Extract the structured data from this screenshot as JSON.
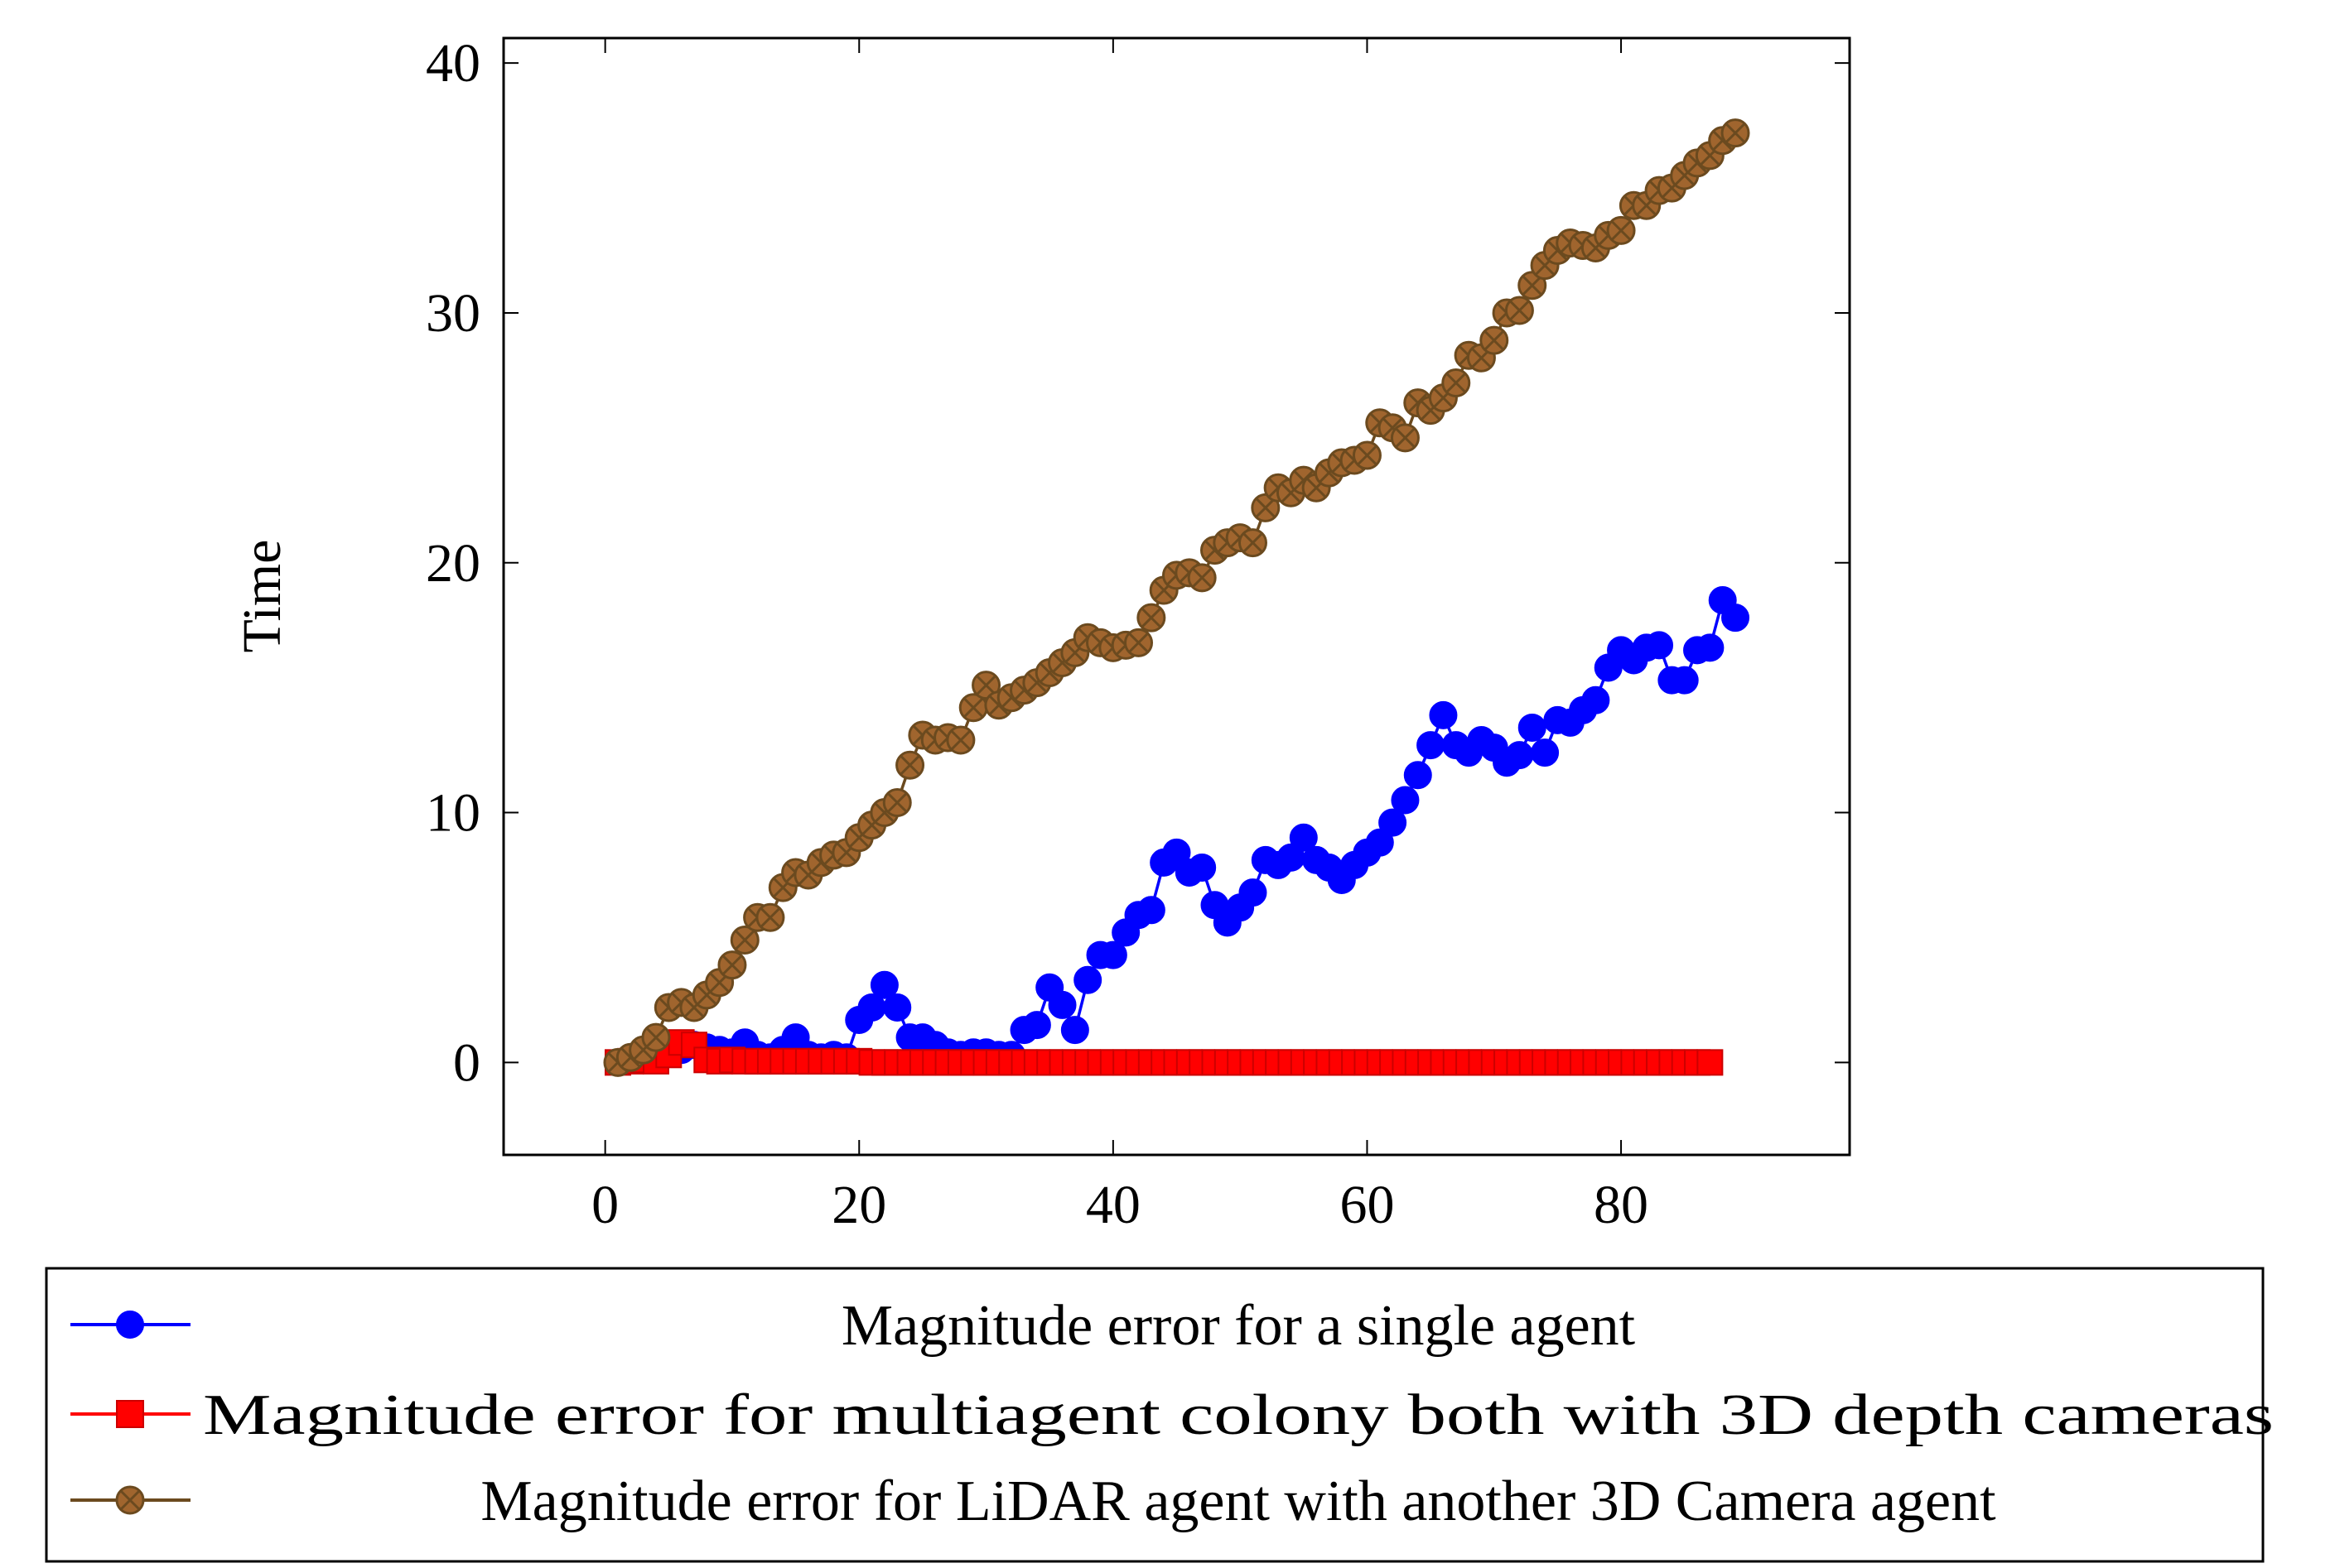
{
  "chart_data": {
    "type": "line",
    "title": "",
    "xlabel": "",
    "ylabel": "Time",
    "xlim": [
      -8,
      98
    ],
    "ylim": [
      -3.7,
      41
    ],
    "xticks": [
      0,
      20,
      40,
      60,
      80
    ],
    "yticks": [
      0,
      10,
      20,
      30,
      40
    ],
    "grid": false,
    "legend_position": "bottom",
    "series": [
      {
        "name": "Magnitude error for a single agent",
        "color": "#0000ff",
        "marker": "circle",
        "x": [
          1,
          2,
          3,
          4,
          5,
          6,
          7,
          8,
          9,
          10,
          11,
          12,
          13,
          14,
          15,
          16,
          17,
          18,
          19,
          20,
          21,
          22,
          23,
          24,
          25,
          26,
          27,
          28,
          29,
          30,
          31,
          32,
          33,
          34,
          35,
          36,
          37,
          38,
          39,
          40,
          41,
          42,
          43,
          44,
          45,
          46,
          47,
          48,
          49,
          50,
          51,
          52,
          53,
          54,
          55,
          56,
          57,
          58,
          59,
          60,
          61,
          62,
          63,
          64,
          65,
          66,
          67,
          68,
          69,
          70,
          71,
          72,
          73,
          74,
          75,
          76,
          77,
          78,
          79,
          80,
          81,
          82,
          83,
          84,
          85,
          86,
          87,
          88,
          89
        ],
        "y": [
          0,
          0.1,
          0.2,
          0.3,
          0.4,
          0.5,
          0.7,
          0.6,
          0.5,
          0.4,
          0.8,
          0.3,
          0.2,
          0.5,
          1.0,
          0.3,
          0.2,
          0.3,
          0.2,
          1.7,
          2.2,
          3.1,
          2.2,
          1.0,
          1.0,
          0.7,
          0.4,
          0.3,
          0.4,
          0.4,
          0.3,
          0.3,
          1.3,
          1.5,
          3.0,
          2.3,
          1.3,
          3.3,
          4.3,
          4.3,
          5.2,
          5.9,
          6.1,
          8.0,
          8.4,
          7.6,
          7.8,
          6.3,
          5.6,
          6.2,
          6.8,
          8.1,
          7.9,
          8.2,
          9.0,
          8.1,
          7.8,
          7.3,
          7.9,
          8.4,
          8.8,
          9.6,
          10.5,
          11.5,
          12.7,
          13.9,
          12.7,
          12.4,
          12.9,
          12.6,
          12.0,
          12.3,
          13.4,
          12.4,
          13.7,
          13.6,
          14.1,
          14.5,
          15.8,
          16.5,
          16.1,
          16.6,
          16.7,
          15.3,
          15.3,
          16.5,
          16.6,
          18.5,
          17.8
        ]
      },
      {
        "name": "Magnitude error for multiagent colony both with 3D depth cameras",
        "color": "#ff0000",
        "marker": "square",
        "x": [
          1,
          2,
          3,
          4,
          5,
          6,
          7,
          8,
          9,
          10,
          11,
          12,
          13,
          14,
          15,
          16,
          17,
          18,
          19,
          20,
          21,
          22,
          23,
          24,
          25,
          26,
          27,
          28,
          29,
          30,
          31,
          32,
          33,
          34,
          35,
          36,
          37,
          38,
          39,
          40,
          41,
          42,
          43,
          44,
          45,
          46,
          47,
          48,
          49,
          50,
          51,
          52,
          53,
          54,
          55,
          56,
          57,
          58,
          59,
          60,
          61,
          62,
          63,
          64,
          65,
          66,
          67,
          68,
          69,
          70,
          71,
          72,
          73,
          74,
          75,
          76,
          77,
          78,
          79,
          80,
          81,
          82,
          83,
          84,
          85,
          86,
          87
        ],
        "y": [
          0,
          0.05,
          0.1,
          0.05,
          0.3,
          0.8,
          0.7,
          0.1,
          0.05,
          0.1,
          0.05,
          0.05,
          0.05,
          0.05,
          0.05,
          0.05,
          0.05,
          0.05,
          0.05,
          0.05,
          0,
          0,
          0,
          0,
          0,
          0,
          0,
          0,
          0,
          0,
          0,
          0,
          0,
          0,
          0,
          0,
          0,
          0,
          0,
          0,
          0,
          0,
          0,
          0,
          0,
          0,
          0,
          0,
          0,
          0,
          0,
          0,
          0,
          0,
          0,
          0,
          0,
          0,
          0,
          0,
          0,
          0,
          0,
          0,
          0,
          0,
          0,
          0,
          0,
          0,
          0,
          0,
          0,
          0,
          0,
          0,
          0,
          0,
          0,
          0,
          0,
          0,
          0,
          0,
          0,
          0,
          0
        ]
      },
      {
        "name": "Magnitude error for LiDAR agent with another 3D Camera agent",
        "color": "#8b5a2b",
        "marker": "circle-x",
        "x": [
          1,
          2,
          3,
          4,
          5,
          6,
          7,
          8,
          9,
          10,
          11,
          12,
          13,
          14,
          15,
          16,
          17,
          18,
          19,
          20,
          21,
          22,
          23,
          24,
          25,
          26,
          27,
          28,
          29,
          30,
          31,
          32,
          33,
          34,
          35,
          36,
          37,
          38,
          39,
          40,
          41,
          42,
          43,
          44,
          45,
          46,
          47,
          48,
          49,
          50,
          51,
          52,
          53,
          54,
          55,
          56,
          57,
          58,
          59,
          60,
          61,
          62,
          63,
          64,
          65,
          66,
          67,
          68,
          69,
          70,
          71,
          72,
          73,
          74,
          75,
          76,
          77,
          78,
          79,
          80,
          81,
          82,
          83,
          84,
          85,
          86,
          87,
          88,
          89
        ],
        "y": [
          0,
          0.2,
          0.5,
          1.0,
          2.2,
          2.4,
          2.2,
          2.7,
          3.2,
          3.9,
          4.9,
          5.8,
          5.8,
          7.0,
          7.6,
          7.5,
          8.0,
          8.3,
          8.4,
          9.0,
          9.5,
          10.0,
          10.4,
          11.9,
          13.1,
          12.9,
          13.0,
          12.9,
          14.2,
          15.1,
          14.3,
          14.6,
          14.9,
          15.2,
          15.6,
          16.0,
          16.4,
          17.0,
          16.8,
          16.6,
          16.7,
          16.8,
          17.8,
          18.9,
          19.5,
          19.6,
          19.4,
          20.5,
          20.8,
          21.0,
          20.8,
          22.2,
          23.0,
          22.8,
          23.3,
          23.0,
          23.6,
          24.0,
          24.1,
          24.3,
          25.6,
          25.4,
          25.0,
          26.4,
          26.1,
          26.6,
          27.2,
          28.3,
          28.2,
          28.9,
          30.0,
          30.1,
          31.1,
          31.9,
          32.5,
          32.8,
          32.7,
          32.6,
          33.1,
          33.3,
          34.3,
          34.3,
          34.9,
          35.0,
          35.5,
          36.0,
          36.3,
          36.9,
          37.2
        ]
      }
    ]
  }
}
